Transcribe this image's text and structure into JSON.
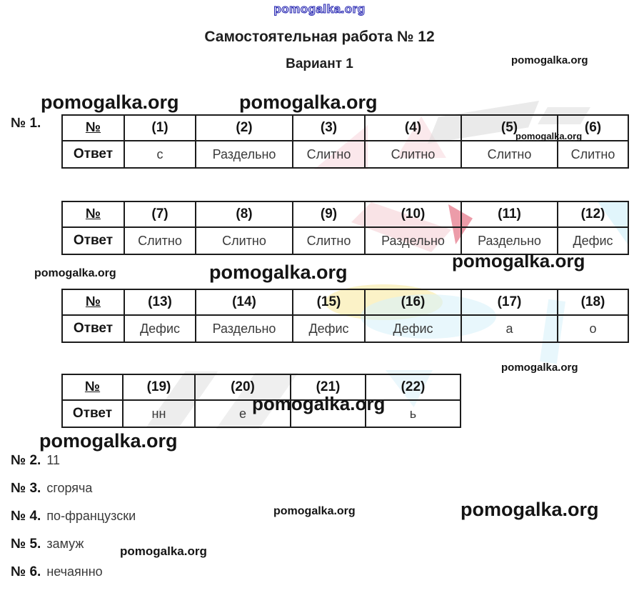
{
  "watermark": {
    "text": "pomogalka.org"
  },
  "header": {
    "title": "Самостоятельная работа № 12",
    "subtitle": "Вариант 1"
  },
  "section1_label": "№ 1.",
  "tables": [
    {
      "headers": [
        "№",
        "(1)",
        "(2)",
        "(3)",
        "(4)",
        "(5)",
        "(6)"
      ],
      "answers": [
        "Ответ",
        "с",
        "Раздельно",
        "Слитно",
        "Слитно",
        "Слитно",
        "Слитно"
      ]
    },
    {
      "headers": [
        "№",
        "(7)",
        "(8)",
        "(9)",
        "(10)",
        "(11)",
        "(12)"
      ],
      "answers": [
        "Ответ",
        "Слитно",
        "Слитно",
        "Слитно",
        "Раздельно",
        "Раздельно",
        "Дефис"
      ]
    },
    {
      "headers": [
        "№",
        "(13)",
        "(14)",
        "(15)",
        "(16)",
        "(17)",
        "(18)"
      ],
      "answers": [
        "Ответ",
        "Дефис",
        "Раздельно",
        "Дефис",
        "Дефис",
        "а",
        "о"
      ]
    },
    {
      "headers": [
        "№",
        "(19)",
        "(20)",
        "(21)",
        "(22)"
      ],
      "answers": [
        "Ответ",
        "нн",
        "е",
        "",
        "ь"
      ]
    }
  ],
  "tasks": [
    {
      "label": "№ 2.",
      "answer": "11"
    },
    {
      "label": "№ 3.",
      "answer": "сгоряча"
    },
    {
      "label": "№ 4.",
      "answer": "по-французски"
    },
    {
      "label": "№ 5.",
      "answer": "замуж"
    },
    {
      "label": "№ 6.",
      "answer": "нечаянно"
    }
  ],
  "colors": {
    "watermark_blue": "#2d2db4",
    "text_dark": "#141414",
    "answer_gray": "#3a3a3a",
    "decor_pink": "#f7d3da",
    "decor_red": "#e05a70",
    "decor_yellow": "#f9edb4",
    "decor_cyan": "#d9f1fa",
    "decor_gray": "#d9d9d9"
  }
}
